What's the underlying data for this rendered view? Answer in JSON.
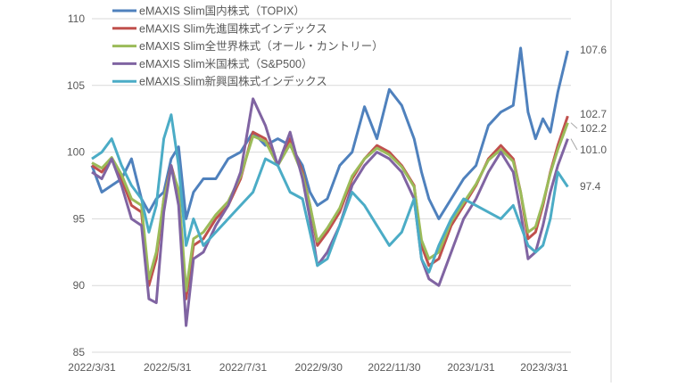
{
  "chart_data": {
    "type": "line",
    "title": "",
    "xlabel": "",
    "ylabel": "",
    "ylim": [
      85,
      110
    ],
    "yticks": [
      "85",
      "90",
      "95",
      "100",
      "105",
      "110"
    ],
    "xlim_days": [
      0,
      384
    ],
    "xticks": [
      {
        "label": "2022/3/31",
        "day": 0
      },
      {
        "label": "2022/5/31",
        "day": 61
      },
      {
        "label": "2022/7/31",
        "day": 122
      },
      {
        "label": "2022/9/30",
        "day": 183
      },
      {
        "label": "2022/11/30",
        "day": 244
      },
      {
        "label": "2023/1/31",
        "day": 306
      },
      {
        "label": "2023/3/31",
        "day": 365
      }
    ],
    "grid": "horizontal",
    "legend_position": "top",
    "x_days": [
      0,
      8,
      16,
      24,
      32,
      40,
      46,
      52,
      58,
      64,
      70,
      76,
      82,
      90,
      100,
      110,
      120,
      130,
      140,
      150,
      160,
      170,
      176,
      182,
      190,
      200,
      210,
      220,
      230,
      240,
      250,
      260,
      266,
      272,
      280,
      290,
      300,
      310,
      320,
      330,
      340,
      346,
      352,
      358,
      364,
      370,
      376,
      384
    ],
    "series": [
      {
        "name": "eMAXIS Slim国内株式（TOPIX）",
        "color": "#4f81bd",
        "end_label": "107.6",
        "values": [
          99,
          97,
          97.5,
          98,
          99.5,
          96.5,
          95.5,
          96.5,
          97,
          99.5,
          100.4,
          95,
          97,
          98,
          98,
          99.5,
          100,
          101.5,
          100.5,
          101,
          100.5,
          99,
          97,
          96,
          96.5,
          99,
          100,
          103.4,
          101,
          104.7,
          103.5,
          101,
          98.5,
          96.5,
          95,
          96.5,
          98,
          99,
          102,
          103,
          103.5,
          107.8,
          103,
          101,
          102.5,
          101.5,
          104.5,
          107.6
        ]
      },
      {
        "name": "eMAXIS Slim先進国株式インデックス",
        "color": "#c0504d",
        "end_label": "102.7",
        "values": [
          99,
          98.5,
          99.5,
          98,
          96,
          95.5,
          90,
          92,
          96.5,
          99,
          97,
          89,
          93,
          93.5,
          95,
          96,
          98,
          101.5,
          101,
          99,
          101,
          98.5,
          96,
          93,
          94,
          95.5,
          98,
          99.5,
          100.5,
          100,
          99,
          97.5,
          93,
          91.5,
          92,
          94.5,
          96,
          97.5,
          99.5,
          100.5,
          99.5,
          97,
          93.5,
          94,
          96,
          98.5,
          100.5,
          102.7
        ]
      },
      {
        "name": "eMAXIS Slim全世界株式（オール・カントリー）",
        "color": "#9bbb59",
        "end_label": "102.2",
        "values": [
          99.2,
          98.8,
          99.6,
          98.3,
          96.5,
          96,
          90.5,
          92.5,
          96.5,
          98.8,
          97.2,
          89.6,
          93.5,
          94,
          95.3,
          96.3,
          98.2,
          101.2,
          100.8,
          99,
          100.6,
          98.3,
          96,
          93.3,
          94.3,
          95.8,
          98.2,
          99.5,
          100.3,
          99.8,
          98.9,
          97.4,
          93.4,
          92,
          92.5,
          94.8,
          96.2,
          97.6,
          99.4,
          100.2,
          99.3,
          97,
          94,
          94.4,
          96.2,
          98.4,
          100.2,
          102.2
        ]
      },
      {
        "name": "eMAXIS Slim米国株式（S&P500）",
        "color": "#8064a2",
        "end_label": "101.0",
        "values": [
          98.5,
          98,
          99.5,
          97.5,
          95,
          94.5,
          89,
          88.7,
          95.5,
          99,
          96,
          87,
          92,
          92.5,
          94.5,
          96,
          98.5,
          104,
          102,
          99,
          101.5,
          98,
          95,
          91.5,
          92.5,
          94.5,
          97.5,
          99,
          100,
          99.5,
          98.5,
          96.5,
          92,
          90.5,
          90,
          92.5,
          95,
          96.5,
          98.5,
          100,
          98.5,
          95.5,
          92,
          92.5,
          94.5,
          97,
          99,
          101.0
        ]
      },
      {
        "name": "eMAXIS Slim新興国株式インデックス",
        "color": "#4bacc6",
        "end_label": "97.4",
        "values": [
          99.5,
          100,
          101,
          99,
          97.5,
          96.5,
          94,
          96,
          101,
          102.8,
          99,
          93,
          95,
          93,
          94,
          95,
          96,
          97,
          99.5,
          99,
          97,
          96.5,
          94,
          91.5,
          92,
          94.5,
          97,
          96,
          94.5,
          93,
          94,
          96.5,
          92,
          91,
          93,
          95,
          96.5,
          96,
          95.5,
          95,
          96,
          94.5,
          93,
          92.5,
          93,
          95,
          98.5,
          97.4
        ]
      }
    ]
  }
}
